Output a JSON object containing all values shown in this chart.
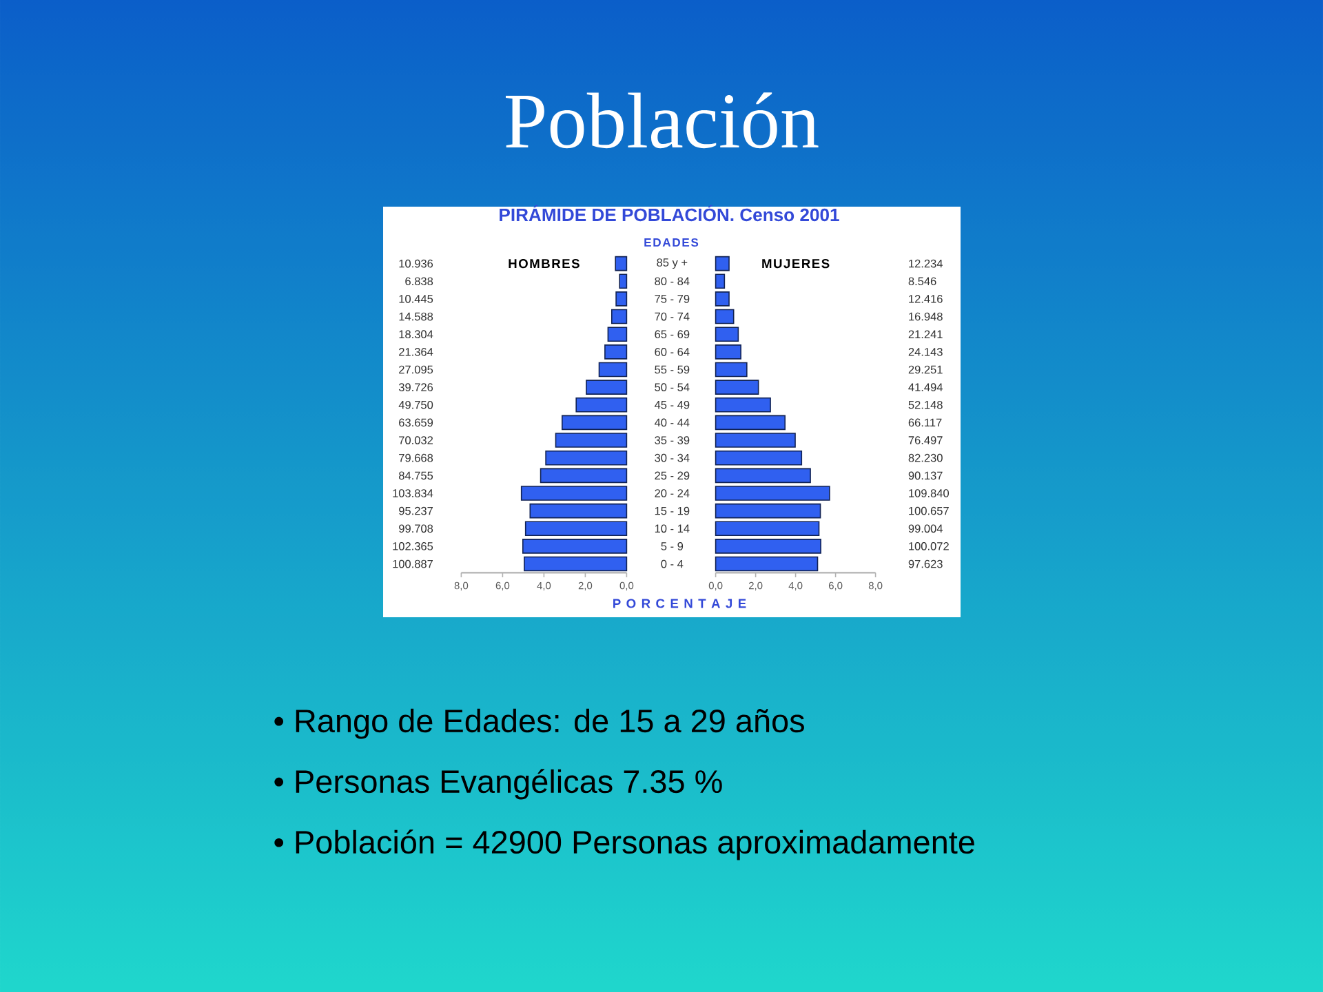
{
  "chart_data": [
    {
      "type": "bar",
      "orientation": "horizontal",
      "title": "Población",
      "subtitle": "PIRÁMIDE DE POBLACIÓN. Censo 2001",
      "ylabel": "EDADES",
      "xlabel": "P O R C E N T A J E",
      "categories": [
        "85 y +",
        "80 - 84",
        "75 - 79",
        "70 - 74",
        "65 - 69",
        "60 - 64",
        "55 - 59",
        "50 - 54",
        "45 - 49",
        "40 - 44",
        "35 - 39",
        "30 - 34",
        "25 - 29",
        "20 - 24",
        "15 - 19",
        "10 - 14",
        "5 - 9",
        "0 - 4"
      ],
      "y2_categories": [
        "10.936",
        "6.838",
        "10.445",
        "14.588",
        "18.304",
        "21.364",
        "27.095",
        "39.726",
        "49.750",
        "63.659",
        "70.032",
        "79.668",
        "84.755",
        "103.834",
        "95.237",
        "99.708",
        "102.365",
        "100.887"
      ],
      "series": [
        {
          "name": "HOMBRES",
          "color": "#3060f0",
          "values": [
            0.54,
            0.34,
            0.51,
            0.72,
            0.9,
            1.05,
            1.33,
            1.95,
            2.44,
            3.12,
            3.43,
            3.91,
            4.16,
            5.09,
            4.67,
            4.89,
            5.02,
            4.95
          ]
        }
      ],
      "xlim": [
        8,
        0
      ],
      "xticks": [
        {
          "value": 8,
          "label": "8,0"
        },
        {
          "value": 6,
          "label": "6,0"
        },
        {
          "value": 4,
          "label": "4,0"
        },
        {
          "value": 2,
          "label": "2,0"
        },
        {
          "value": 0,
          "label": "0,0"
        }
      ],
      "annotations": [
        "• Rango de Edades: de 15 a 29 años",
        "• Personas Evangélicas 7.35 %",
        "• Población = 42900 Personas aproximadamente"
      ]
    },
    {
      "type": "bar",
      "orientation": "horizontal",
      "categories": [
        null,
        null,
        null,
        null,
        null,
        null,
        null,
        null,
        null,
        null,
        null,
        null,
        null,
        null,
        null,
        null,
        null,
        null
      ],
      "y2_categories": [
        "12.234",
        "8.546",
        "12.416",
        "16.948",
        "21.241",
        "24.143",
        "29.251",
        "41.494",
        "52.148",
        "66.117",
        "76.497",
        "82.230",
        "90.137",
        "109.840",
        "100.657",
        "99.004",
        "100.072",
        "97.623"
      ],
      "series": [
        {
          "name": "MUJERES",
          "color": "#3060f0",
          "values": [
            0.67,
            0.44,
            0.67,
            0.9,
            1.13,
            1.26,
            1.56,
            2.14,
            2.74,
            3.47,
            3.98,
            4.3,
            4.74,
            5.7,
            5.24,
            5.17,
            5.26,
            5.1
          ]
        }
      ],
      "xlim": [
        0,
        8
      ],
      "xticks": [
        {
          "value": 0,
          "label": "0,0"
        },
        {
          "value": 2,
          "label": "2,0"
        },
        {
          "value": 4,
          "label": "4,0"
        },
        {
          "value": 6,
          "label": "6,0"
        },
        {
          "value": 8,
          "label": "8,0"
        }
      ]
    }
  ]
}
